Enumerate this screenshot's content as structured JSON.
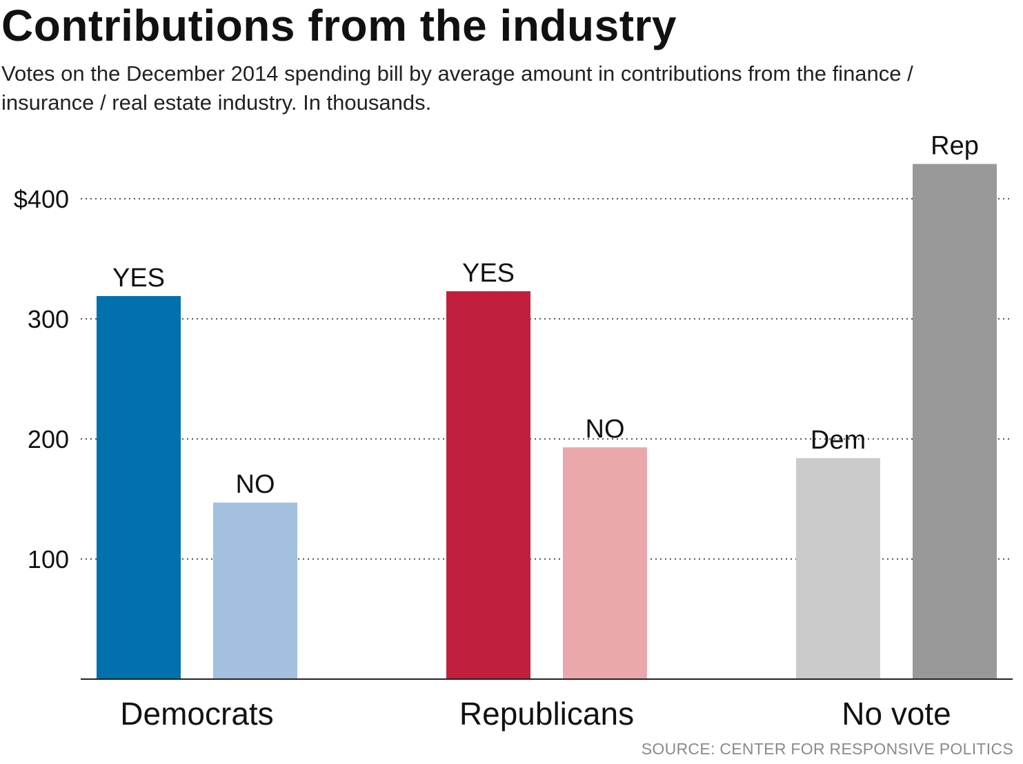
{
  "title": "Contributions from the industry",
  "subtitle": "Votes on the December 2014 spending bill by average amount in contributions from the finance / insurance / real estate industry. In thousands.",
  "source": "SOURCE: CENTER FOR RESPONSIVE POLITICS",
  "chart_data": {
    "type": "bar",
    "title": "Contributions from the industry",
    "xlabel": "",
    "ylabel": "",
    "ylim": [
      0,
      430
    ],
    "yticks": [
      {
        "value": 100,
        "label": "100"
      },
      {
        "value": 200,
        "label": "200"
      },
      {
        "value": 300,
        "label": "300"
      },
      {
        "value": 400,
        "label": "$400"
      }
    ],
    "grid": true,
    "groups": [
      {
        "label": "Democrats",
        "bars": [
          {
            "label": "YES",
            "value": 319,
            "color": "#0071ad"
          },
          {
            "label": "NO",
            "value": 147,
            "color": "#a3c0df"
          }
        ]
      },
      {
        "label": "Republicans",
        "bars": [
          {
            "label": "YES",
            "value": 323,
            "color": "#c0203c"
          },
          {
            "label": "NO",
            "value": 193,
            "color": "#eaa8ac"
          }
        ]
      },
      {
        "label": "No vote",
        "bars": [
          {
            "label": "Dem",
            "value": 184,
            "color": "#cbcbcb"
          },
          {
            "label": "Rep",
            "value": 429,
            "color": "#999999"
          }
        ]
      }
    ]
  }
}
